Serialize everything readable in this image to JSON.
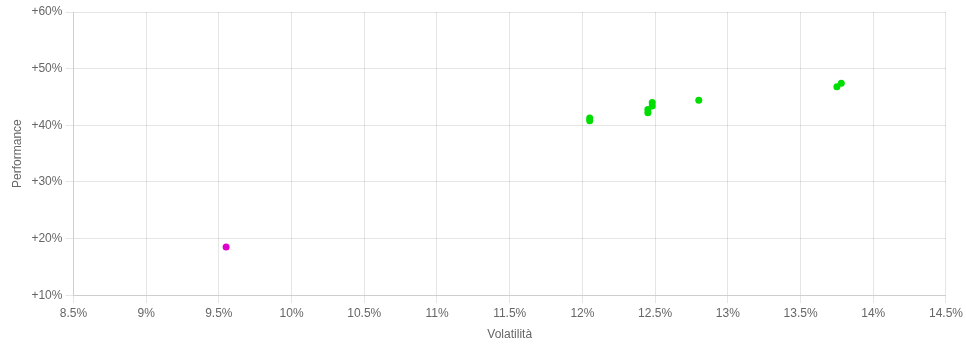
{
  "chart_data": {
    "type": "scatter",
    "xlabel": "Volatilità",
    "ylabel": "Performance",
    "xlim": [
      0.085,
      0.145
    ],
    "ylim": [
      0.1,
      0.6
    ],
    "xticks": [
      {
        "value": 0.085,
        "label": "8.5%"
      },
      {
        "value": 0.09,
        "label": "9%"
      },
      {
        "value": 0.095,
        "label": "9.5%"
      },
      {
        "value": 0.1,
        "label": "10%"
      },
      {
        "value": 0.105,
        "label": "10.5%"
      },
      {
        "value": 0.11,
        "label": "11%"
      },
      {
        "value": 0.115,
        "label": "11.5%"
      },
      {
        "value": 0.12,
        "label": "12%"
      },
      {
        "value": 0.125,
        "label": "12.5%"
      },
      {
        "value": 0.13,
        "label": "13%"
      },
      {
        "value": 0.135,
        "label": "13.5%"
      },
      {
        "value": 0.14,
        "label": "14%"
      },
      {
        "value": 0.145,
        "label": "14.5%"
      }
    ],
    "yticks": [
      {
        "value": 0.1,
        "label": "+10%"
      },
      {
        "value": 0.2,
        "label": "+20%"
      },
      {
        "value": 0.3,
        "label": "+30%"
      },
      {
        "value": 0.4,
        "label": "+40%"
      },
      {
        "value": 0.5,
        "label": "+50%"
      },
      {
        "value": 0.6,
        "label": "+60%"
      }
    ],
    "series": [
      {
        "color": "#00dd00",
        "x": [
          0.1205,
          0.1205,
          0.1245,
          0.1245,
          0.1248,
          0.1248,
          0.128,
          0.1375,
          0.1378
        ],
        "values": [
          0.408,
          0.413,
          0.422,
          0.428,
          0.434,
          0.44,
          0.444,
          0.468,
          0.474
        ]
      },
      {
        "color": "#dd00cc",
        "x": [
          0.0955
        ],
        "values": [
          0.185
        ]
      }
    ],
    "marker": "circle",
    "grid": true
  }
}
